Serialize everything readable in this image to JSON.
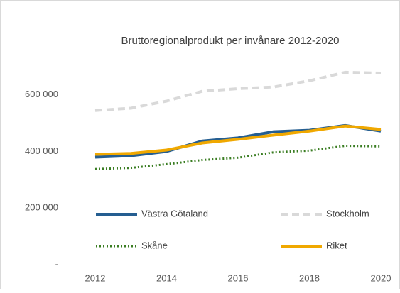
{
  "chart_data": {
    "type": "line",
    "title": "Bruttoregionalprodukt per invånare 2012-2020",
    "x": [
      2012,
      2013,
      2014,
      2015,
      2016,
      2017,
      2018,
      2019,
      2020
    ],
    "xlim": [
      2012,
      2020
    ],
    "xticks": [
      2012,
      2014,
      2016,
      2018,
      2020
    ],
    "ylim": [
      0,
      800000
    ],
    "yticks": [
      {
        "value": 0,
        "label": "-"
      },
      {
        "value": 200000,
        "label": "200 000"
      },
      {
        "value": 400000,
        "label": "400 000"
      },
      {
        "value": 600000,
        "label": "600 000"
      }
    ],
    "grid": false,
    "legend": "bottom",
    "series": [
      {
        "name": "Västra Götaland",
        "color": "#255e91",
        "style": "solid",
        "values": [
          380000,
          385000,
          400000,
          437000,
          448000,
          470000,
          475000,
          492000,
          472000
        ]
      },
      {
        "name": "Stockholm",
        "color": "#d9d9d9",
        "style": "dashed",
        "values": [
          545000,
          553000,
          578000,
          613000,
          622000,
          628000,
          650000,
          680000,
          677000
        ]
      },
      {
        "name": "Skåne",
        "color": "#3a7d22",
        "style": "dotted",
        "values": [
          338000,
          342000,
          355000,
          370000,
          378000,
          397000,
          403000,
          420000,
          418000
        ]
      },
      {
        "name": "Riket",
        "color": "#f0a800",
        "style": "solid",
        "values": [
          390000,
          393000,
          405000,
          430000,
          443000,
          458000,
          472000,
          490000,
          478000
        ]
      }
    ]
  }
}
